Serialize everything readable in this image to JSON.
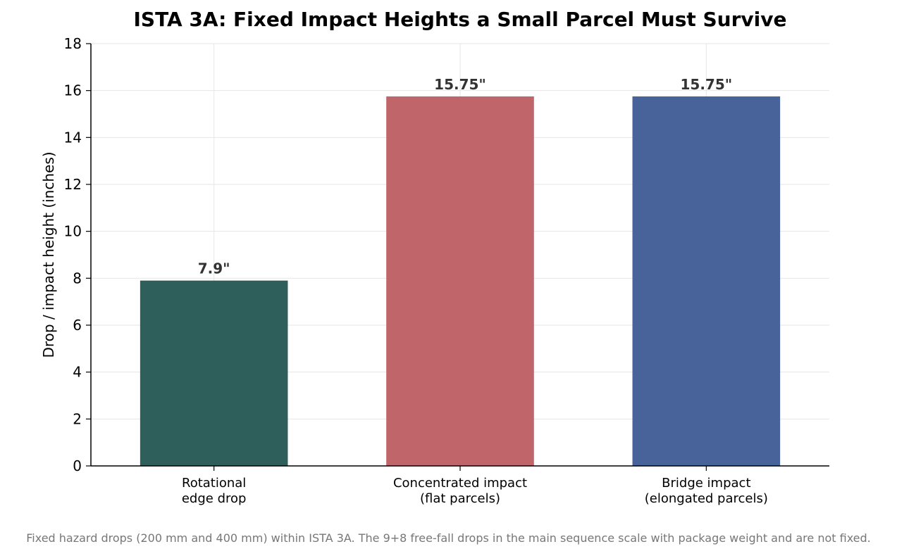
{
  "chart_data": {
    "type": "bar",
    "title": "ISTA 3A: Fixed Impact Heights a Small Parcel Must Survive",
    "xlabel": "",
    "ylabel": "Drop / impact height (inches)",
    "ylim": [
      0,
      18
    ],
    "yticks": [
      0,
      2,
      4,
      6,
      8,
      10,
      12,
      14,
      16,
      18
    ],
    "grid": true,
    "categories": [
      [
        "Rotational",
        "edge drop"
      ],
      [
        "Concentrated impact",
        "(flat parcels)"
      ],
      [
        "Bridge impact",
        "(elongated parcels)"
      ]
    ],
    "values": [
      7.9,
      15.75,
      15.75
    ],
    "value_labels": [
      "7.9\"",
      "15.75\"",
      "15.75\""
    ],
    "colors": [
      "#2e5f5a",
      "#c0666a",
      "#48629a"
    ]
  },
  "footnote": "Fixed hazard drops (200 mm and 400 mm) within ISTA 3A. The 9+8 free-fall drops in the main sequence scale with package weight and are not fixed."
}
